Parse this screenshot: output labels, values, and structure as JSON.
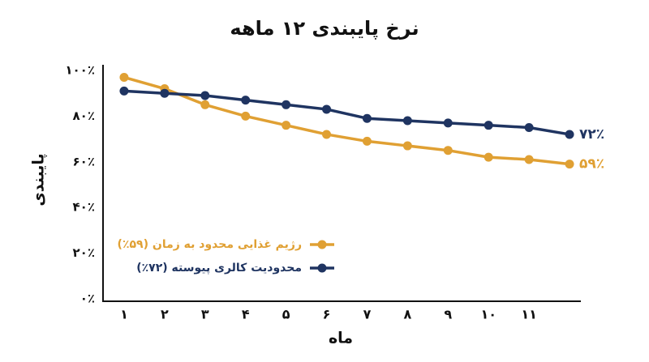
{
  "chart_data": {
    "type": "line",
    "title": "نرخ پایبندی ۱۲ ماهه",
    "x_label": "ماه",
    "y_label": "پایبندی",
    "x": [
      1,
      2,
      3,
      4,
      5,
      6,
      7,
      8,
      9,
      10,
      11,
      12
    ],
    "xlim": [
      0.5,
      12.5
    ],
    "xticks": [
      {
        "value": 1,
        "label": "۱"
      },
      {
        "value": 2,
        "label": "۲"
      },
      {
        "value": 3,
        "label": "۳"
      },
      {
        "value": 4,
        "label": "۴"
      },
      {
        "value": 5,
        "label": "۵"
      },
      {
        "value": 6,
        "label": "۶"
      },
      {
        "value": 7,
        "label": "۷"
      },
      {
        "value": 8,
        "label": "۸"
      },
      {
        "value": 9,
        "label": "۹"
      },
      {
        "value": 10,
        "label": "۱۰"
      },
      {
        "value": 11,
        "label": "۱۱"
      }
    ],
    "ylim": [
      0,
      100
    ],
    "yticks": [
      {
        "value": 0,
        "label": "۰٪"
      },
      {
        "value": 20,
        "label": "۲۰٪"
      },
      {
        "value": 40,
        "label": "۴۰٪"
      },
      {
        "value": 60,
        "label": "۶۰٪"
      },
      {
        "value": 80,
        "label": "۸۰٪"
      },
      {
        "value": 100,
        "label": "۱۰۰٪"
      }
    ],
    "legend": "lower left",
    "series": [
      {
        "name": "رژیم غذایی محدود به زمان (۵۹٪)",
        "color": "#e0a033",
        "values": [
          97,
          92,
          85,
          80,
          76,
          72,
          69,
          67,
          65,
          62,
          61,
          59
        ],
        "value_labels": [
          null,
          null,
          null,
          null,
          null,
          null,
          null,
          null,
          null,
          null,
          null,
          "۵۹٪"
        ]
      },
      {
        "name": "محدودیت کالری پیوسته (۷۲٪)",
        "color": "#1f3461",
        "values": [
          91,
          90,
          89,
          87,
          85,
          83,
          79,
          78,
          77,
          76,
          75,
          72
        ],
        "value_labels": [
          null,
          null,
          null,
          null,
          null,
          null,
          null,
          null,
          null,
          null,
          null,
          "۷۲٪"
        ]
      }
    ]
  }
}
